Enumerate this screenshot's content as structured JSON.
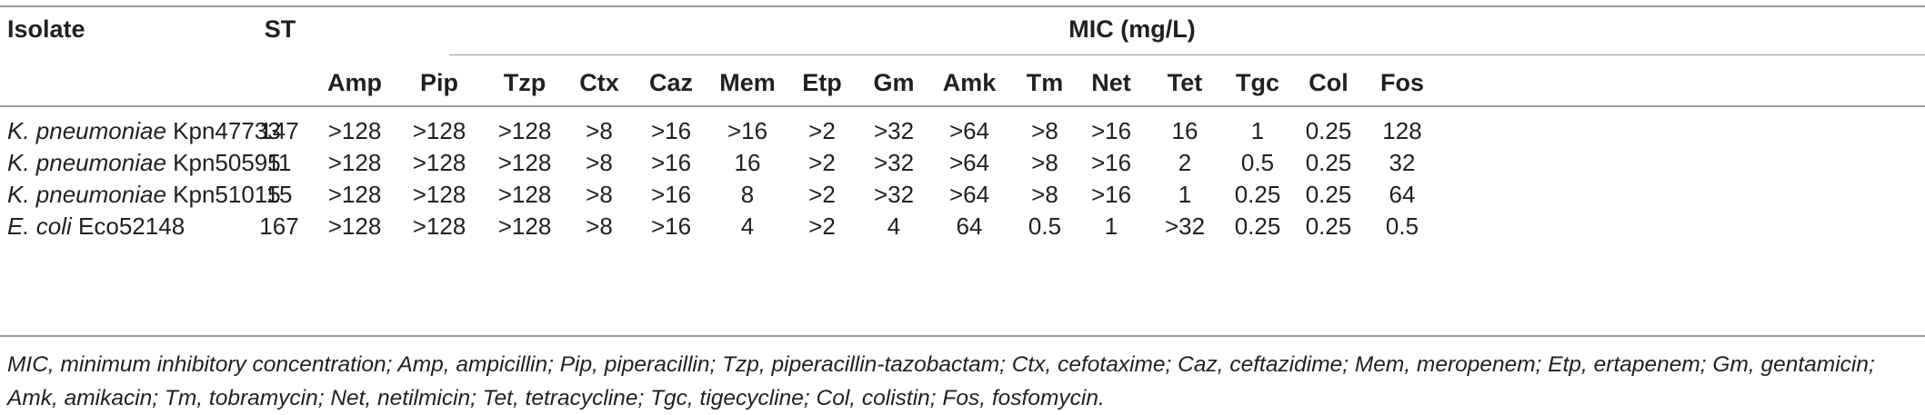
{
  "table": {
    "header": {
      "isolate": "Isolate",
      "st": "ST",
      "mic": "MIC (mg/L)",
      "antibiotics": [
        "Amp",
        "Pip",
        "Tzp",
        "Ctx",
        "Caz",
        "Mem",
        "Etp",
        "Gm",
        "Amk",
        "Tm",
        "Net",
        "Tet",
        "Tgc",
        "Col",
        "Fos"
      ]
    },
    "rows": [
      {
        "species": "K. pneumoniae",
        "strain": "Kpn47733",
        "st": "147",
        "values": [
          ">128",
          ">128",
          ">128",
          ">8",
          ">16",
          ">16",
          ">2",
          ">32",
          ">64",
          ">8",
          ">16",
          "16",
          "1",
          "0.25",
          "128"
        ]
      },
      {
        "species": "K. pneumoniae",
        "strain": "Kpn50595",
        "st": "11",
        "values": [
          ">128",
          ">128",
          ">128",
          ">8",
          ">16",
          "16",
          ">2",
          ">32",
          ">64",
          ">8",
          ">16",
          "2",
          "0.5",
          "0.25",
          "32"
        ]
      },
      {
        "species": "K. pneumoniae",
        "strain": "Kpn51015",
        "st": "15",
        "values": [
          ">128",
          ">128",
          ">128",
          ">8",
          ">16",
          "8",
          ">2",
          ">32",
          ">64",
          ">8",
          ">16",
          "1",
          "0.25",
          "0.25",
          "64"
        ]
      },
      {
        "species": "E. coli",
        "strain": "Eco52148",
        "st": "167",
        "values": [
          ">128",
          ">128",
          ">128",
          ">8",
          ">16",
          "4",
          ">2",
          "4",
          "64",
          "0.5",
          "1",
          ">32",
          "0.25",
          "0.25",
          "0.5"
        ]
      }
    ],
    "footnote": "MIC, minimum inhibitory concentration; Amp, ampicillin; Pip, piperacillin; Tzp, piperacillin-tazobactam; Ctx, cefotaxime; Caz, ceftazidime; Mem, meropenem; Etp, ertapenem; Gm, gentamicin; Amk, amikacin; Tm, tobramycin; Net, netilmicin; Tet, tetracycline; Tgc, tigecycline; Col, colistin; Fos, fosfomycin."
  }
}
